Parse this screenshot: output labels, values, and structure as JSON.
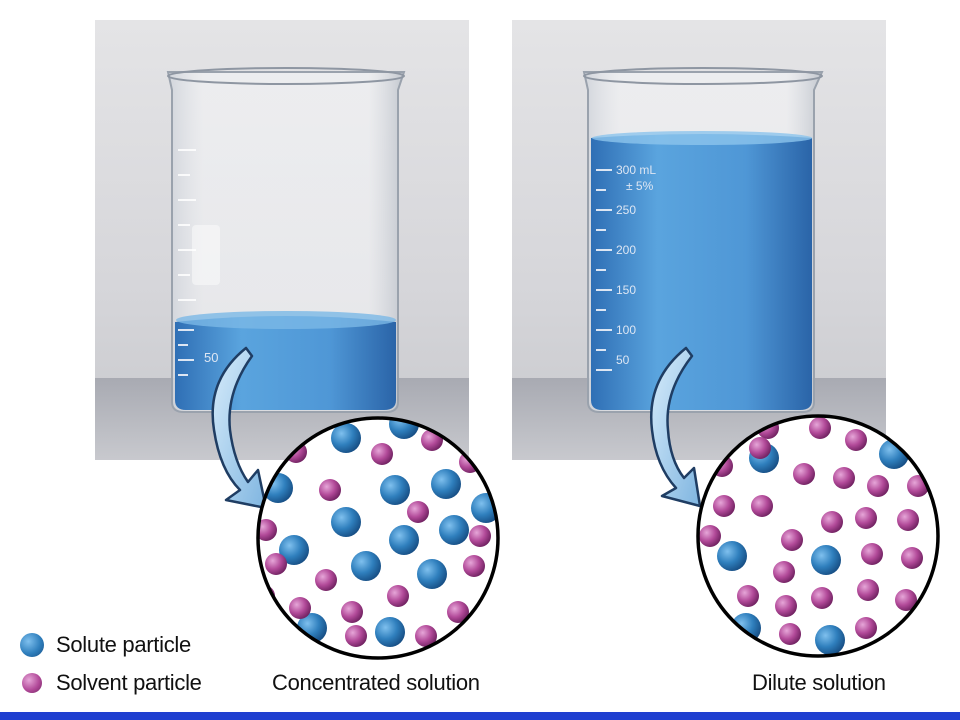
{
  "legend": {
    "solute_label": "Solute particle",
    "solvent_label": "Solvent particle"
  },
  "panels": [
    {
      "caption": "Concentrated solution",
      "beaker_markings": [
        "50"
      ],
      "solute_particles": 14,
      "solvent_particles": 18
    },
    {
      "caption": "Dilute solution",
      "beaker_markings": [
        "300 mL",
        "± 5%",
        "250",
        "200",
        "150",
        "100",
        "50"
      ],
      "solute_particles": 6,
      "solvent_particles": 26
    }
  ],
  "colors": {
    "solute": "#2f7fbd",
    "solvent": "#b24a99",
    "liquid": "#4f97d6",
    "bottom_bar": "#1f3fd0"
  }
}
